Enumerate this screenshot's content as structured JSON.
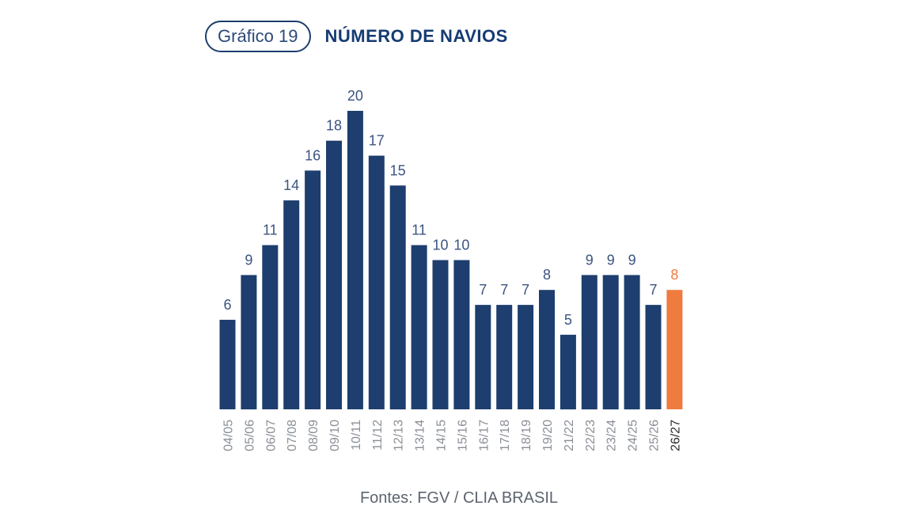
{
  "header": {
    "badge_label": "Gráfico 19",
    "title": "NÚMERO DE NAVIOS"
  },
  "colors": {
    "bar": "#1d3e6e",
    "highlight": "#f07b3f",
    "label": "#3a5480",
    "tick": "#8a8f96",
    "tick_highlight": "#2b2b2b"
  },
  "chart_data": {
    "type": "bar",
    "title": "NÚMERO DE NAVIOS",
    "xlabel": "",
    "ylabel": "",
    "ylim": [
      0,
      20
    ],
    "grid": false,
    "categories": [
      "04/05",
      "05/06",
      "06/07",
      "07/08",
      "08/09",
      "09/10",
      "10/11",
      "11/12",
      "12/13",
      "13/14",
      "14/15",
      "15/16",
      "16/17",
      "17/18",
      "18/19",
      "19/20",
      "21/22",
      "22/23",
      "23/24",
      "24/25",
      "25/26",
      "26/27"
    ],
    "values": [
      6,
      9,
      11,
      14,
      16,
      18,
      20,
      17,
      15,
      11,
      10,
      10,
      7,
      7,
      7,
      8,
      5,
      9,
      9,
      9,
      7,
      8
    ],
    "highlighted_category": "26/27",
    "data_labels": true
  },
  "footer": {
    "source": "Fontes: FGV / CLIA BRASIL"
  }
}
